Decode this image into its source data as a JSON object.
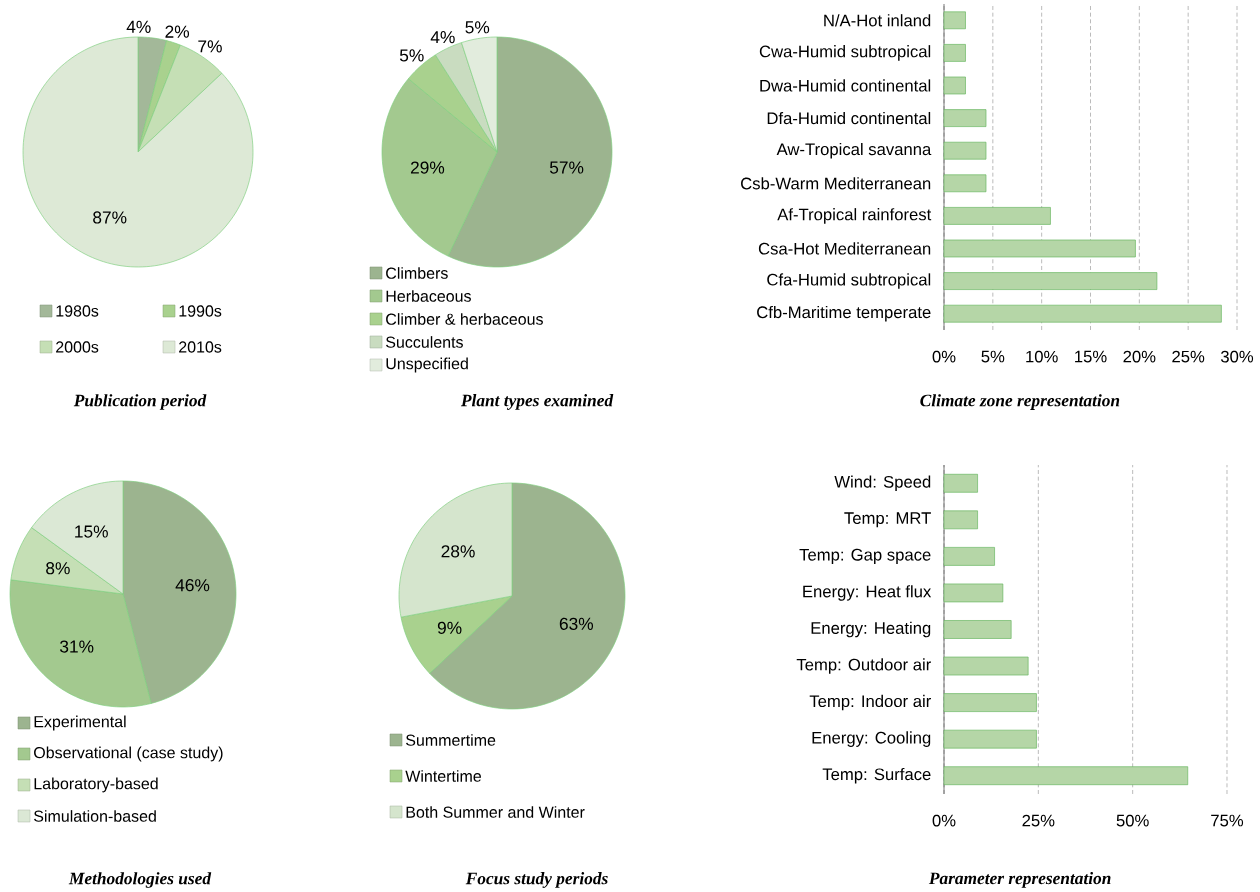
{
  "chart_data": [
    {
      "type": "pie",
      "title": "Publication period",
      "categories": [
        "1980s",
        "1990s",
        "2000s",
        "2010s"
      ],
      "values": [
        4,
        2,
        7,
        87
      ],
      "value_labels": [
        "4%",
        "2%",
        "7%",
        "87%"
      ],
      "colors": [
        "#a3b899",
        "#a9d18e",
        "#c5dfb5",
        "#dde9d6"
      ],
      "legend": "bottom"
    },
    {
      "type": "pie",
      "title": "Plant types examined",
      "categories": [
        "Climbers",
        "Herbaceous",
        "Climber & herbaceous",
        "Succulents",
        "Unspecified"
      ],
      "values": [
        57,
        29,
        5,
        4,
        5
      ],
      "value_labels": [
        "57%",
        "29%",
        "5%",
        "4%",
        "5%"
      ],
      "colors": [
        "#9cb48f",
        "#a3c98f",
        "#a9d18e",
        "#c9dcc0",
        "#e2ecdd"
      ],
      "legend": "bottom"
    },
    {
      "type": "bar",
      "orientation": "horizontal",
      "title": "Climate zone representation",
      "categories": [
        "N/A-Hot inland",
        "Cwa-Humid subtropical",
        "Dwa-Humid continental",
        "Dfa-Humid continental",
        "Aw-Tropical savanna",
        "Csb-Warm Mediterranean",
        "Af-Tropical rainforest",
        "Csa-Hot Mediterranean",
        "Cfa-Humid subtropical",
        "Cfb-Maritime temperate"
      ],
      "values": [
        2.2,
        2.2,
        2.2,
        4.3,
        4.3,
        4.3,
        10.9,
        19.6,
        21.8,
        28.4
      ],
      "color": "#b5d6a7",
      "xlim": [
        0,
        30
      ],
      "xticks": [
        {
          "value": 0,
          "label": "0%"
        },
        {
          "value": 5,
          "label": "5%"
        },
        {
          "value": 10,
          "label": "10%"
        },
        {
          "value": 15,
          "label": "15%"
        },
        {
          "value": 20,
          "label": "20%"
        },
        {
          "value": 25,
          "label": "25%"
        },
        {
          "value": 30,
          "label": "30%"
        }
      ],
      "grid": "x"
    },
    {
      "type": "pie",
      "title": "Methodologies used",
      "categories": [
        "Experimental",
        "Observational (case study)",
        "Laboratory-based",
        "Simulation-based"
      ],
      "values": [
        46,
        31,
        8,
        15
      ],
      "value_labels": [
        "46%",
        "31%",
        "8%",
        "15%"
      ],
      "colors": [
        "#9cb48f",
        "#a3c98f",
        "#c5dfb5",
        "#dbe8d5"
      ],
      "legend": "bottom"
    },
    {
      "type": "pie",
      "title": "Focus study periods",
      "categories": [
        "Summertime",
        "Wintertime",
        "Both Summer and Winter"
      ],
      "values": [
        63,
        9,
        28
      ],
      "value_labels": [
        "63%",
        "9%",
        "28%"
      ],
      "colors": [
        "#9cb48f",
        "#a9d18e",
        "#d5e5cd"
      ],
      "legend": "bottom"
    },
    {
      "type": "bar",
      "orientation": "horizontal",
      "title": "Parameter representation",
      "categories": [
        "Wind: Speed",
        "Temp: MRT",
        "Temp: Gap space",
        "Energy: Heat flux",
        "Energy: Heating",
        "Temp: Outdoor air",
        "Temp: Indoor air",
        "Energy: Cooling",
        "Temp: Surface"
      ],
      "values": [
        8.9,
        8.9,
        13.4,
        15.6,
        17.8,
        22.3,
        24.5,
        24.5,
        64.6
      ],
      "color": "#b5d6a7",
      "xlim": [
        0,
        75
      ],
      "xticks": [
        {
          "value": 0,
          "label": "0%"
        },
        {
          "value": 25,
          "label": "25%"
        },
        {
          "value": 50,
          "label": "50%"
        },
        {
          "value": 75,
          "label": "75%"
        }
      ],
      "grid": "x"
    }
  ]
}
